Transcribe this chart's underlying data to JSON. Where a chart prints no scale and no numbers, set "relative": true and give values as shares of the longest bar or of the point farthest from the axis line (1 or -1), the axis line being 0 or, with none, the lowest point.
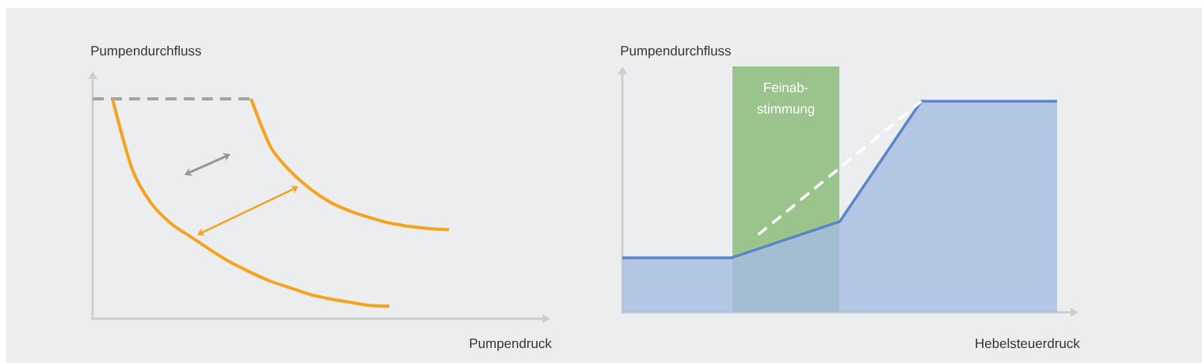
{
  "chart_data": [
    {
      "type": "line",
      "relative": true,
      "xlabel": "Pumpendruck",
      "ylabel": "Pumpendurchfluss",
      "categories": [
        null,
        null,
        null,
        null,
        null,
        null,
        null,
        null,
        null,
        null,
        null,
        null,
        null,
        null,
        null,
        null,
        null,
        null,
        null,
        null,
        null,
        null,
        null,
        null
      ],
      "series": [
        {
          "color": "#a3a3a3",
          "line_style": "dashed",
          "values": [
            1.0,
            1.0,
            1.0,
            1.0,
            1.0,
            1.0,
            1.0,
            1.0,
            1.0,
            null,
            null,
            null,
            null,
            null,
            null,
            null,
            null,
            null,
            null,
            null,
            null,
            null,
            null,
            null
          ]
        },
        {
          "color": "#f5a31f",
          "values": [
            null,
            1.0,
            0.68,
            0.52,
            0.43,
            0.37,
            0.31,
            0.255,
            0.21,
            0.17,
            0.14,
            0.11,
            0.09,
            0.075,
            0.06,
            0.058,
            null,
            null,
            null,
            null,
            null,
            null,
            null,
            null
          ]
        },
        {
          "color": "#f5a31f",
          "values": [
            null,
            null,
            null,
            null,
            null,
            null,
            null,
            null,
            1.0,
            0.78,
            0.67,
            0.59,
            0.53,
            0.49,
            0.46,
            0.435,
            0.42,
            0.41,
            0.405,
            null,
            null,
            null,
            null,
            null
          ]
        }
      ]
    },
    {
      "type": "area",
      "relative": true,
      "xlabel": "Hebelsteuerdruck",
      "ylabel": "Pumpendurchfluss",
      "categories": [
        null,
        null,
        null,
        null,
        null,
        null,
        null,
        null,
        null,
        null,
        null,
        null,
        null,
        null,
        null,
        null,
        null
      ],
      "annotations": [
        "Feinab-stimmung"
      ],
      "series": [
        {
          "color": "#5b87c9",
          "values": [
            0.258,
            0.258,
            0.258,
            0.258,
            0.258,
            0.301,
            0.344,
            0.387,
            0.43,
            0.62,
            0.81,
            1.0,
            1.0,
            1.0,
            1.0,
            1.0,
            1.0
          ]
        },
        {
          "type": "line",
          "color": "#ffffff",
          "line_style": "dashed",
          "values": [
            null,
            null,
            null,
            null,
            null,
            0.368,
            0.473,
            0.579,
            0.684,
            0.789,
            0.895,
            1.0,
            null,
            null,
            null,
            null,
            null
          ]
        }
      ]
    }
  ]
}
